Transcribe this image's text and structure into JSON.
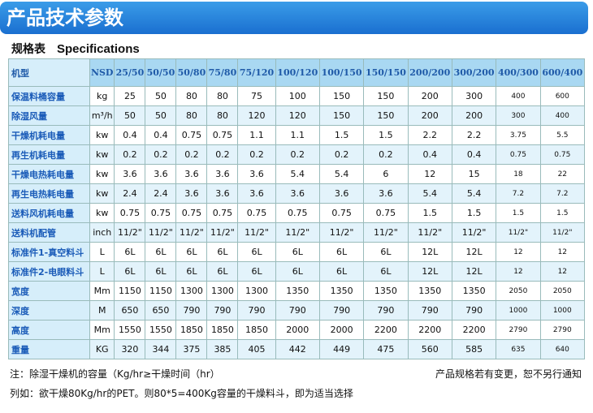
{
  "header": {
    "title": "产品技术参数"
  },
  "subtitle": {
    "cn": "规格表",
    "en": "Specifications"
  },
  "table": {
    "header": [
      "机型",
      "NSD",
      "25/50",
      "50/50",
      "50/80",
      "75/80",
      "75/120",
      "100/120",
      "100/150",
      "150/150",
      "200/200",
      "300/200",
      "400/300",
      "600/400"
    ],
    "rows": [
      [
        "保温料桶容量",
        "kg",
        "25",
        "50",
        "80",
        "80",
        "75",
        "100",
        "150",
        "150",
        "200",
        "300",
        "400",
        "600"
      ],
      [
        "除湿风量",
        "m³/h",
        "50",
        "50",
        "80",
        "80",
        "120",
        "120",
        "150",
        "150",
        "200",
        "200",
        "300",
        "400"
      ],
      [
        "干燥机耗电量",
        "kw",
        "0.4",
        "0.4",
        "0.75",
        "0.75",
        "1.1",
        "1.1",
        "1.5",
        "1.5",
        "2.2",
        "2.2",
        "3.75",
        "5.5"
      ],
      [
        "再生机耗电量",
        "kw",
        "0.2",
        "0.2",
        "0.2",
        "0.2",
        "0.2",
        "0.2",
        "0.2",
        "0.2",
        "0.4",
        "0.4",
        "0.75",
        "0.75"
      ],
      [
        "干燥电热耗电量",
        "kw",
        "3.6",
        "3.6",
        "3.6",
        "3.6",
        "3.6",
        "5.4",
        "5.4",
        "6",
        "12",
        "15",
        "18",
        "22"
      ],
      [
        "再生电热耗电量",
        "kw",
        "2.4",
        "2.4",
        "3.6",
        "3.6",
        "3.6",
        "3.6",
        "3.6",
        "3.6",
        "5.4",
        "5.4",
        "7.2",
        "7.2"
      ],
      [
        "送料风机耗电量",
        "kw",
        "0.75",
        "0.75",
        "0.75",
        "0.75",
        "0.75",
        "0.75",
        "0.75",
        "0.75",
        "1.5",
        "1.5",
        "1.5",
        "1.5"
      ],
      [
        "送料机配管",
        "inch",
        "11/2\"",
        "11/2\"",
        "11/2\"",
        "11/2\"",
        "11/2\"",
        "11/2\"",
        "11/2\"",
        "11/2\"",
        "11/2\"",
        "11/2\"",
        "11/2\"",
        "11/2\""
      ],
      [
        "标准件1-真空料斗",
        "L",
        "6L",
        "6L",
        "6L",
        "6L",
        "6L",
        "6L",
        "6L",
        "6L",
        "12L",
        "12L",
        "12",
        "12"
      ],
      [
        "标准件2-电眼料斗",
        "L",
        "6L",
        "6L",
        "6L",
        "6L",
        "6L",
        "6L",
        "6L",
        "6L",
        "12L",
        "12L",
        "12",
        "12"
      ],
      [
        "宽度",
        "Mm",
        "1150",
        "1150",
        "1300",
        "1300",
        "1300",
        "1350",
        "1350",
        "1350",
        "1350",
        "1350",
        "2050",
        "2050"
      ],
      [
        "深度",
        "M",
        "650",
        "650",
        "790",
        "790",
        "790",
        "790",
        "790",
        "790",
        "790",
        "790",
        "1000",
        "1000"
      ],
      [
        "高度",
        "Mm",
        "1550",
        "1550",
        "1850",
        "1850",
        "1850",
        "2000",
        "2000",
        "2200",
        "2200",
        "2200",
        "2790",
        "2790"
      ],
      [
        "重量",
        "KG",
        "320",
        "344",
        "375",
        "385",
        "405",
        "442",
        "449",
        "475",
        "560",
        "585",
        "635",
        "640"
      ]
    ]
  },
  "notes": {
    "line1": "注：除湿干燥机的容量（Kg/hr≥干燥时间（hr）",
    "right": "产品规格若有变更，恕不另行通知",
    "line2": "列如：欲干燥80Kg/hr的PET。则80*5=400Kg容量的干燥料斗，即为适当选择"
  }
}
